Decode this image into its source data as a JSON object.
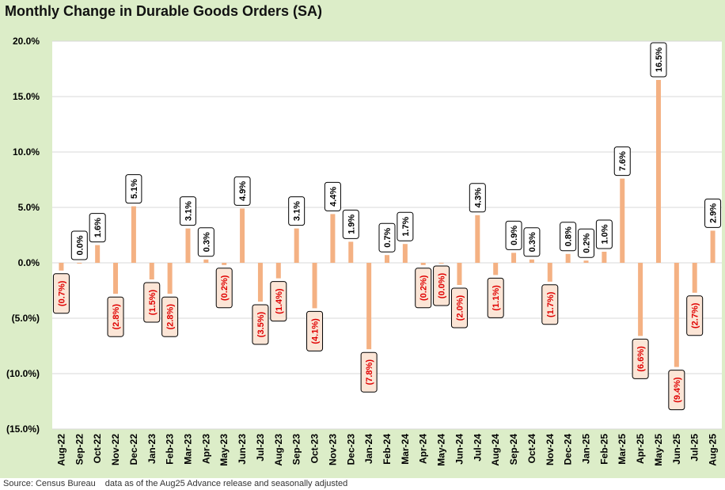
{
  "chart_data": {
    "type": "bar",
    "title": "Monthly Change in Durable Goods Orders (SA)",
    "xlabel": "",
    "ylabel": "",
    "ylim": [
      -15,
      20
    ],
    "yticks": [
      20,
      15,
      10,
      5,
      0,
      -5,
      -10,
      -15
    ],
    "ytick_labels": [
      "20.0%",
      "15.0%",
      "10.0%",
      "5.0%",
      "0.0%",
      "(5.0%)",
      "(10.0%)",
      "(15.0%)"
    ],
    "grid": true,
    "bar_color": "#f4b183",
    "positive_label_color": "#000000",
    "negative_label_color": "#e00000",
    "label_fill": "#fbe5d6",
    "categories": [
      "Aug-22",
      "Sep-22",
      "Oct-22",
      "Nov-22",
      "Dec-22",
      "Jan-23",
      "Feb-23",
      "Mar-23",
      "Apr-23",
      "May-23",
      "Jun-23",
      "Jul-23",
      "Aug-23",
      "Sep-23",
      "Oct-23",
      "Nov-23",
      "Dec-23",
      "Jan-24",
      "Feb-24",
      "Mar-24",
      "Apr-24",
      "May-24",
      "Jun-24",
      "Jul-24",
      "Aug-24",
      "Sep-24",
      "Oct-24",
      "Nov-24",
      "Dec-24",
      "Jan-25",
      "Feb-25",
      "Mar-25",
      "Apr-25",
      "May-25",
      "Jun-25",
      "Jul-25",
      "Aug-25"
    ],
    "values": [
      -0.7,
      0.0,
      1.6,
      -2.8,
      5.1,
      -1.5,
      -2.8,
      3.1,
      0.3,
      -0.2,
      4.9,
      -3.5,
      -1.4,
      3.1,
      -4.1,
      4.4,
      1.9,
      -7.8,
      0.7,
      1.7,
      -0.2,
      -0.0,
      -2.0,
      4.3,
      -1.1,
      0.9,
      0.3,
      -1.7,
      0.8,
      0.2,
      1.0,
      7.6,
      -6.6,
      16.5,
      -9.4,
      -2.7,
      2.9
    ],
    "data_labels": [
      "(0.7%)",
      "0.0%",
      "1.6%",
      "(2.8%)",
      "5.1%",
      "(1.5%)",
      "(2.8%)",
      "3.1%",
      "0.3%",
      "(0.2%)",
      "4.9%",
      "(3.5%)",
      "(1.4%)",
      "3.1%",
      "(4.1%)",
      "4.4%",
      "1.9%",
      "(7.8%)",
      "0.7%",
      "1.7%",
      "(0.2%)",
      "(0.0%)",
      "(2.0%)",
      "4.3%",
      "(1.1%)",
      "0.9%",
      "0.3%",
      "(1.7%)",
      "0.8%",
      "0.2%",
      "1.0%",
      "7.6%",
      "(6.6%)",
      "16.5%",
      "(9.4%)",
      "(2.7%)",
      "2.9%"
    ]
  },
  "footer": {
    "source": "Source: Census Bureau",
    "note": "data as of the Aug25 Advance release and seasonally adjusted"
  }
}
